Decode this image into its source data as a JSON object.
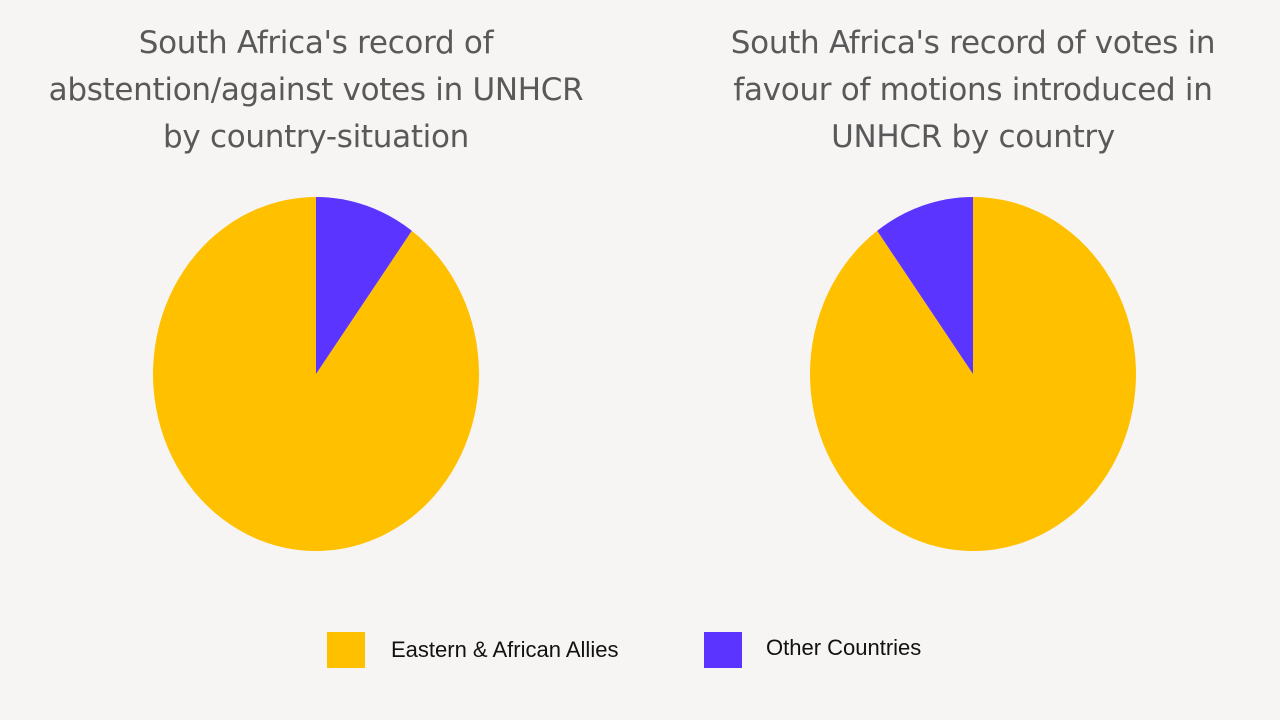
{
  "colors": {
    "background": "#f6f5f3",
    "eastern_african_allies": "#ffc000",
    "other_countries": "#5b34ff",
    "title_text": "#595959"
  },
  "legend": {
    "placement": "bottom-center",
    "items": [
      {
        "label": "Eastern & African Allies",
        "color": "#ffc000"
      },
      {
        "label": "Other Countries",
        "color": "#5b34ff"
      }
    ]
  },
  "chart_data": [
    {
      "type": "pie",
      "title_lines": [
        "South Africa's record of",
        "abstention/against votes in UNHCR",
        "by country-situation"
      ],
      "slices": [
        {
          "label": "Eastern & African Allies",
          "value": 0.9,
          "color": "#ffc000"
        },
        {
          "label": "Other Countries",
          "value": 0.1,
          "color": "#5b34ff"
        }
      ],
      "direction": "counterclockwise-from-top"
    },
    {
      "type": "pie",
      "title_lines": [
        "South Africa's record of votes in",
        "favour of motions introduced in",
        "UNHCR by country"
      ],
      "slices": [
        {
          "label": "Eastern & African Allies",
          "value": 0.9,
          "color": "#ffc000"
        },
        {
          "label": "Other Countries",
          "value": 0.1,
          "color": "#5b34ff"
        }
      ],
      "direction": "clockwise-from-top"
    }
  ]
}
